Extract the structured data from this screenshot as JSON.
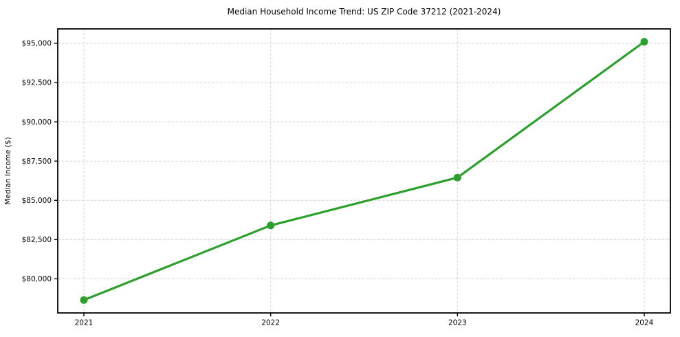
{
  "page": {
    "background_color": "#ffffff"
  },
  "chart_data": {
    "type": "line",
    "title": "Median Household Income Trend: US ZIP Code 37212 (2021-2024)",
    "xlabel": "",
    "ylabel": "Median Income ($)",
    "categories": [
      "2021",
      "2022",
      "2023",
      "2024"
    ],
    "series": [
      {
        "values": [
          78650,
          83400,
          86450,
          95100
        ],
        "color": "#2ca02c",
        "marker": "circle",
        "marker_radius": 5.5
      }
    ],
    "ylim": [
      77827,
      95922
    ],
    "yticks": [
      80000,
      82500,
      85000,
      87500,
      90000,
      92500,
      95000
    ],
    "ytick_labels": [
      "$80,000",
      "$82,500",
      "$85,000",
      "$87,500",
      "$90,000",
      "$92,500",
      "$95,000"
    ],
    "grid": {
      "horizontal": true,
      "vertical": true,
      "style": "dashed",
      "color": "#cccccc"
    },
    "legend": "none",
    "frame_color": "#000000"
  }
}
